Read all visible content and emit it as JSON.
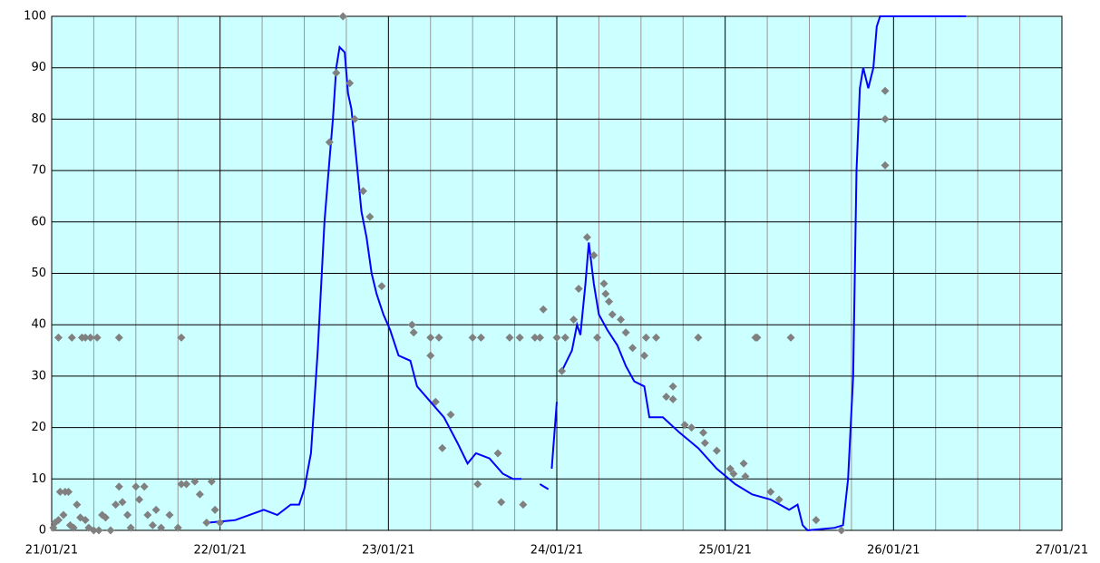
{
  "chart_data": {
    "type": "line",
    "xlim": [
      0,
      6
    ],
    "xticks": [
      {
        "value": 0,
        "label": "21/01/21"
      },
      {
        "value": 1,
        "label": "22/01/21"
      },
      {
        "value": 2,
        "label": "23/01/21"
      },
      {
        "value": 3,
        "label": "24/01/21"
      },
      {
        "value": 4,
        "label": "25/01/21"
      },
      {
        "value": 5,
        "label": "26/01/21"
      },
      {
        "value": 6,
        "label": "27/01/21"
      }
    ],
    "ylim": [
      0,
      100
    ],
    "yticks": [
      0,
      10,
      20,
      30,
      40,
      50,
      60,
      70,
      80,
      90,
      100
    ],
    "grid": true,
    "background": "#ccffff",
    "series": [
      {
        "type": "line",
        "color": "#0000ff",
        "x": [
          0.93,
          1.09,
          1.26,
          1.34,
          1.42,
          1.47,
          1.5,
          1.54,
          1.58,
          1.62,
          1.65,
          1.67,
          1.69,
          1.71,
          1.74,
          1.76,
          1.78,
          1.81,
          1.84,
          1.87,
          1.9,
          1.93,
          1.97,
          2.01,
          2.06,
          2.13,
          2.17,
          2.25,
          2.33,
          2.41,
          2.47,
          2.52,
          2.6,
          2.68,
          2.74,
          2.79,
          2.85,
          2.9,
          2.95,
          2.96,
          2.97,
          3.0,
          3.02,
          3.03,
          3.09,
          3.12,
          3.14,
          3.17,
          3.19,
          3.22,
          3.25,
          3.3,
          3.36,
          3.41,
          3.46,
          3.52,
          3.55,
          3.63,
          3.73,
          3.84,
          3.95,
          4.06,
          4.16,
          4.27,
          4.38,
          4.43,
          4.46,
          4.49,
          4.65,
          4.7,
          4.73,
          4.76,
          4.78,
          4.8,
          4.82,
          4.85,
          4.88,
          4.9,
          4.92,
          5.43
        ],
        "values": [
          1.5,
          2,
          4,
          3,
          5,
          5,
          8,
          15,
          35,
          60,
          72,
          80,
          90,
          94,
          93,
          85,
          82,
          72,
          62,
          57,
          50,
          46,
          42,
          39,
          34,
          33,
          28,
          25,
          22,
          17,
          13,
          15,
          14,
          11,
          10,
          10,
          null,
          9,
          8,
          null,
          12,
          25,
          null,
          31,
          35,
          40,
          38,
          48,
          56,
          48,
          42,
          39,
          36,
          32,
          29,
          28,
          22,
          22,
          19,
          16,
          12,
          9,
          7,
          6,
          4,
          5,
          1,
          0,
          0.5,
          1,
          10,
          30,
          70,
          86,
          90,
          86,
          90,
          98,
          100,
          100
        ]
      },
      {
        "type": "scatter",
        "color": "#808080",
        "x": [
          0.01,
          0.02,
          0.04,
          0.05,
          0.07,
          0.08,
          0.1,
          0.11,
          0.13,
          0.15,
          0.17,
          0.2,
          0.22,
          0.25,
          0.28,
          0.3,
          0.32,
          0.35,
          0.38,
          0.4,
          0.42,
          0.45,
          0.47,
          0.5,
          0.52,
          0.55,
          0.57,
          0.6,
          0.62,
          0.65,
          0.7,
          0.75,
          0.77,
          0.8,
          0.85,
          0.88,
          0.92,
          0.95,
          0.97,
          1.0,
          0.04,
          0.12,
          0.18,
          0.2,
          0.23,
          0.27,
          0.4,
          0.77,
          1.65,
          1.69,
          1.73,
          1.77,
          1.8,
          1.85,
          1.89,
          1.96,
          2.14,
          2.15,
          2.25,
          2.25,
          2.28,
          2.3,
          2.32,
          2.37,
          2.5,
          2.53,
          2.55,
          2.65,
          2.67,
          2.72,
          2.78,
          2.8,
          2.87,
          2.9,
          2.92,
          3.0,
          3.05,
          3.03,
          3.1,
          3.13,
          3.18,
          3.22,
          3.24,
          3.28,
          3.29,
          3.31,
          3.33,
          3.38,
          3.41,
          3.45,
          3.52,
          3.53,
          3.59,
          3.65,
          3.69,
          3.69,
          3.76,
          3.8,
          3.84,
          3.87,
          3.88,
          3.95,
          4.03,
          4.05,
          4.11,
          4.12,
          4.18,
          4.19,
          4.27,
          4.32,
          4.39,
          4.54,
          4.69,
          4.95,
          4.95,
          4.95
        ],
        "values": [
          0.5,
          1.5,
          2,
          7.5,
          3,
          7.5,
          7.5,
          1,
          0.5,
          5,
          2.5,
          2,
          0.5,
          0,
          0,
          3,
          2.5,
          0,
          5,
          8.5,
          5.5,
          3,
          0.5,
          8.5,
          6,
          8.5,
          3,
          1,
          4,
          0.5,
          3,
          0.5,
          9,
          9,
          9.5,
          7,
          1.5,
          9.5,
          4,
          1.5,
          37.5,
          37.5,
          37.5,
          37.5,
          37.5,
          37.5,
          37.5,
          37.5,
          75.5,
          89,
          100,
          87,
          80,
          66,
          61,
          47.5,
          40,
          38.5,
          37.5,
          34,
          25,
          37.5,
          16,
          22.5,
          37.5,
          9,
          37.5,
          15,
          5.5,
          37.5,
          37.5,
          5,
          37.5,
          37.5,
          43,
          37.5,
          37.5,
          31,
          41,
          47,
          57,
          53.5,
          37.5,
          48,
          46,
          44.5,
          42,
          41,
          38.5,
          35.5,
          34,
          37.5,
          37.5,
          26,
          25.5,
          28,
          20.5,
          20,
          37.5,
          19,
          17,
          15.5,
          12,
          11,
          13,
          10.5,
          37.5,
          37.5,
          7.5,
          6,
          37.5,
          2,
          0,
          85.5,
          80,
          71
        ]
      }
    ]
  }
}
